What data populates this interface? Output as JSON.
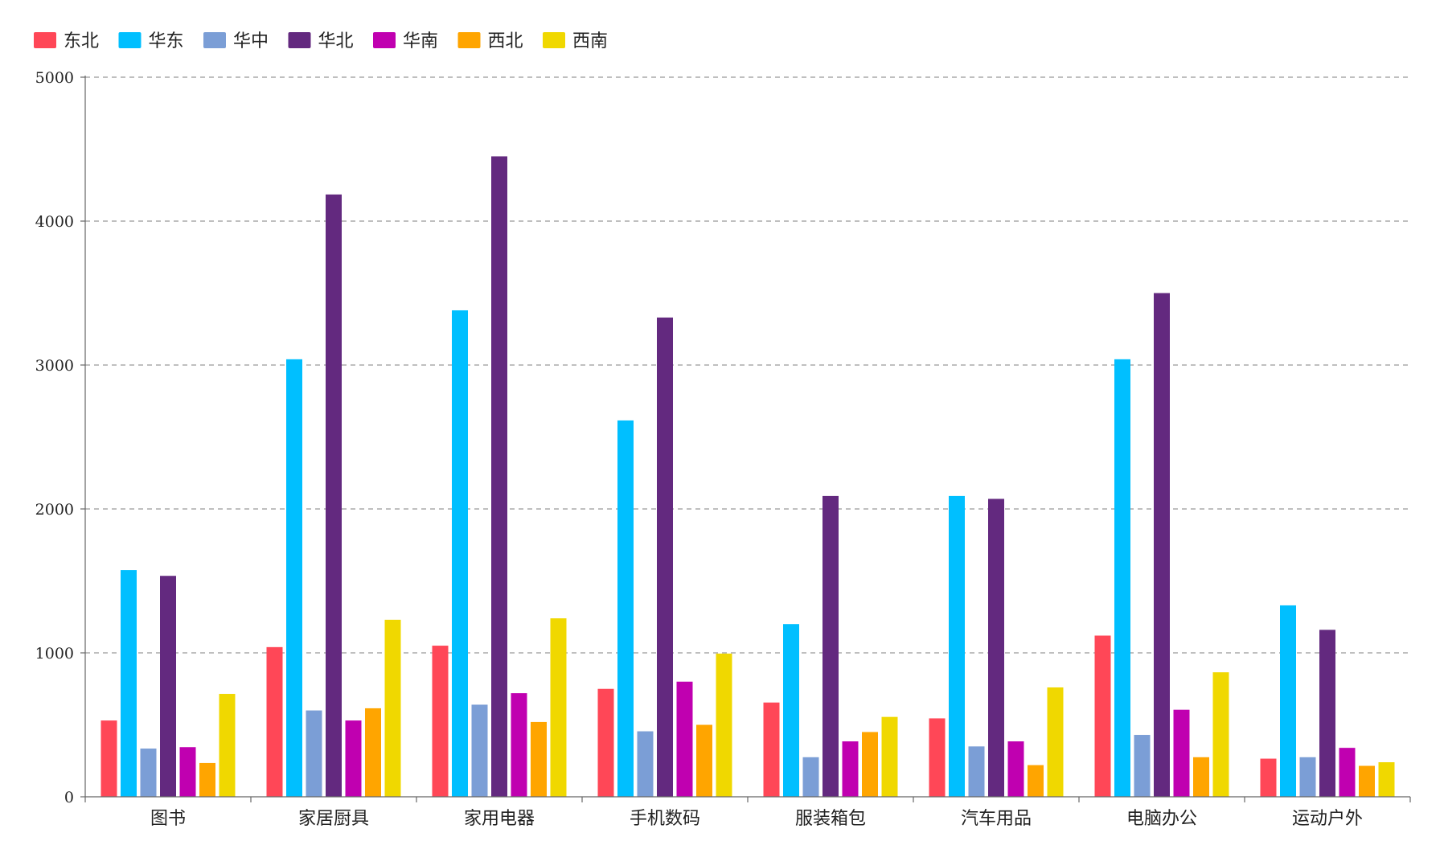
{
  "chart_data": {
    "type": "bar",
    "title": "",
    "xlabel": "",
    "ylabel": "",
    "ylim": [
      0,
      5000
    ],
    "yticks": [
      0,
      1000,
      2000,
      3000,
      4000,
      5000
    ],
    "grid": true,
    "legend_position": "top-left",
    "categories": [
      "图书",
      "家居厨具",
      "家用电器",
      "手机数码",
      "服装箱包",
      "汽车用品",
      "电脑办公",
      "运动户外"
    ],
    "series": [
      {
        "name": "东北",
        "color": "#ff4757",
        "values": [
          530,
          1040,
          1050,
          750,
          655,
          545,
          1120,
          265
        ]
      },
      {
        "name": "华东",
        "color": "#00bfff",
        "values": [
          1575,
          3040,
          3380,
          2615,
          1200,
          2090,
          3040,
          1330
        ]
      },
      {
        "name": "华中",
        "color": "#7b9ed6",
        "values": [
          335,
          600,
          640,
          455,
          275,
          350,
          430,
          275
        ]
      },
      {
        "name": "华北",
        "color": "#63297f",
        "values": [
          1535,
          4185,
          4450,
          3330,
          2090,
          2070,
          3500,
          1160
        ]
      },
      {
        "name": "华南",
        "color": "#c000b0",
        "values": [
          345,
          530,
          720,
          800,
          385,
          385,
          605,
          340
        ]
      },
      {
        "name": "西北",
        "color": "#ffa500",
        "values": [
          235,
          615,
          520,
          500,
          450,
          220,
          275,
          215
        ]
      },
      {
        "name": "西南",
        "color": "#f0d800",
        "values": [
          715,
          1230,
          1240,
          995,
          555,
          760,
          865,
          240
        ]
      }
    ]
  }
}
